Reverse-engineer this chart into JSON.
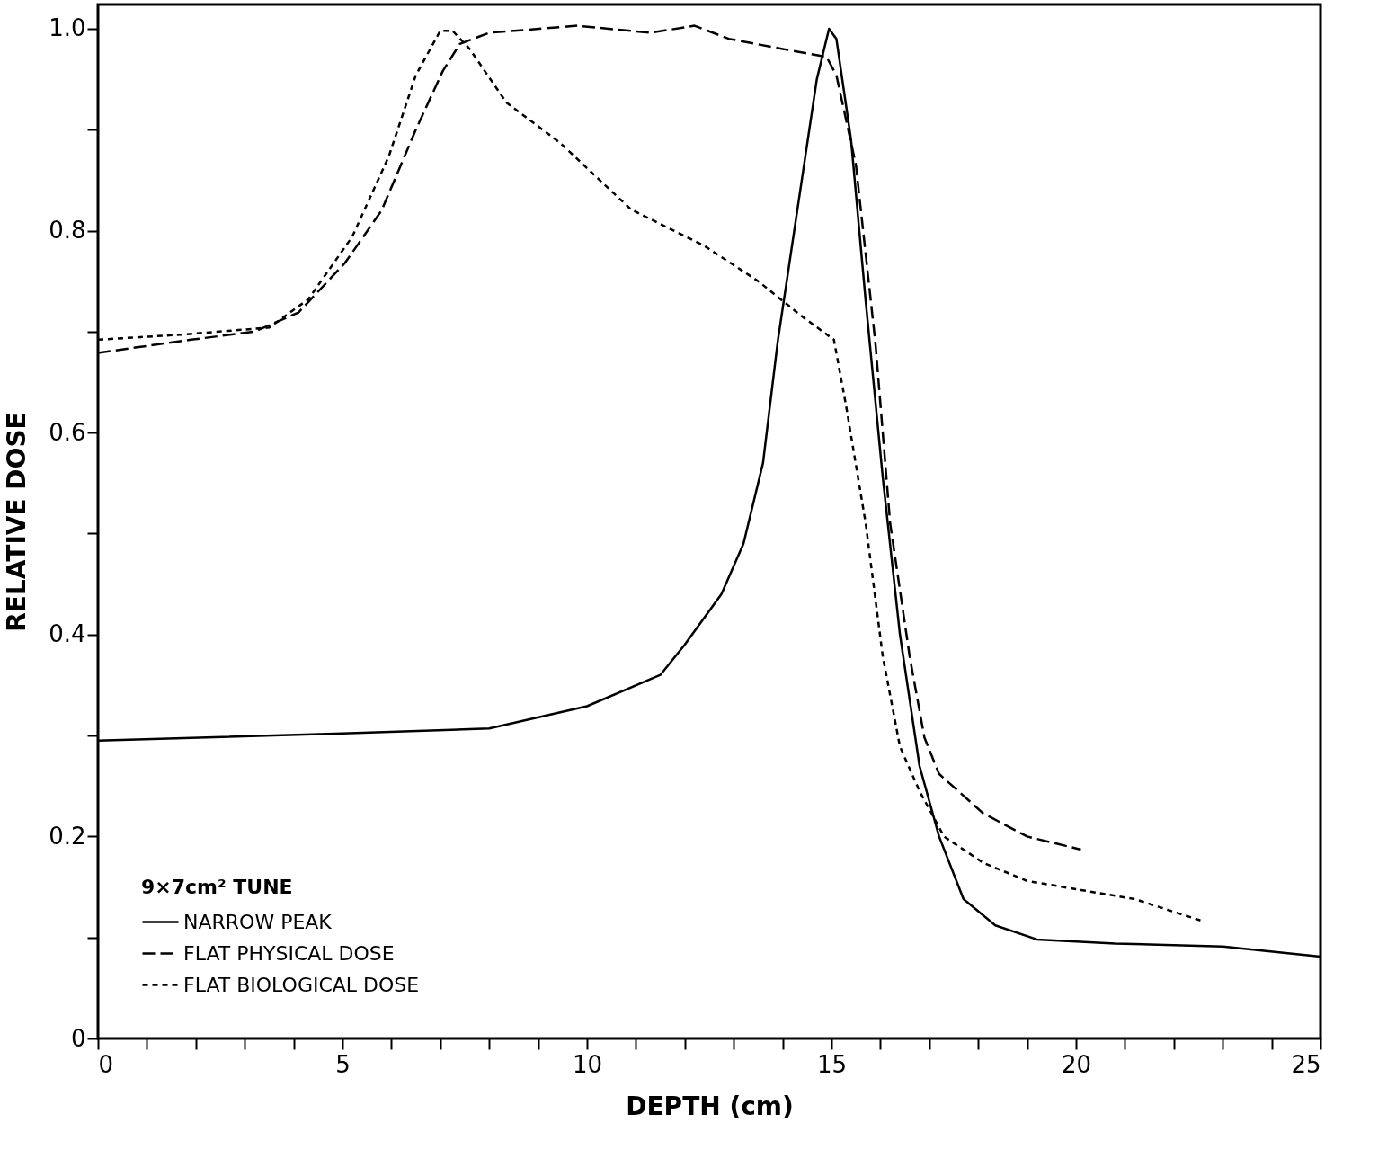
{
  "chart_data": {
    "type": "line",
    "xlabel": "DEPTH (cm)",
    "ylabel": "RELATIVE DOSE",
    "legend_title": "9×7cm² TUNE",
    "legend": "bottom left",
    "grid": false,
    "marker": "none",
    "xlim": [
      0,
      25
    ],
    "ylim": [
      0,
      1.024
    ],
    "xticks": [
      0,
      {
        "value": 1,
        "label": null
      },
      {
        "value": 2,
        "label": null
      },
      {
        "value": 3,
        "label": null
      },
      {
        "value": 4,
        "label": null
      },
      5,
      {
        "value": 6,
        "label": null
      },
      {
        "value": 7,
        "label": null
      },
      {
        "value": 8,
        "label": null
      },
      {
        "value": 9,
        "label": null
      },
      10,
      {
        "value": 11,
        "label": null
      },
      {
        "value": 12,
        "label": null
      },
      {
        "value": 13,
        "label": null
      },
      {
        "value": 14,
        "label": null
      },
      15,
      {
        "value": 16,
        "label": null
      },
      {
        "value": 17,
        "label": null
      },
      {
        "value": 18,
        "label": null
      },
      {
        "value": 19,
        "label": null
      },
      20,
      {
        "value": 21,
        "label": null
      },
      {
        "value": 22,
        "label": null
      },
      {
        "value": 23,
        "label": null
      },
      {
        "value": 24,
        "label": null
      },
      25
    ],
    "yticks": [
      0,
      {
        "value": 0.1,
        "label": null
      },
      0.2,
      {
        "value": 0.3,
        "label": null
      },
      0.4,
      {
        "value": 0.5,
        "label": null
      },
      0.6,
      {
        "value": 0.7,
        "label": null
      },
      0.8,
      {
        "value": 0.9,
        "label": null
      },
      {
        "value": 1,
        "label": "1.0"
      }
    ],
    "series": [
      {
        "name": "NARROW PEAK",
        "color": "#000000",
        "line_style": "solid",
        "x": [
          0,
          5,
          8,
          10,
          11.5,
          12,
          12.75,
          13.2,
          13.6,
          13.9,
          14.3,
          14.7,
          14.95,
          15.1,
          15.4,
          15.7,
          16.05,
          16.4,
          16.8,
          17.2,
          17.7,
          18.35,
          19.2,
          20.8,
          23,
          25
        ],
        "values": [
          0.295,
          0.302,
          0.307,
          0.329,
          0.36,
          0.39,
          0.44,
          0.49,
          0.57,
          0.69,
          0.82,
          0.95,
          1.0,
          0.99,
          0.89,
          0.73,
          0.555,
          0.4,
          0.27,
          0.2,
          0.138,
          0.112,
          0.098,
          0.094,
          0.091,
          0.081
        ]
      },
      {
        "name": "FLAT PHYSICAL DOSE",
        "color": "#000000",
        "line_style": "dashed",
        "x": [
          0,
          1.9,
          3.2,
          4.1,
          5.05,
          5.8,
          6.5,
          7.05,
          7.4,
          8,
          9.8,
          11.3,
          12.2,
          12.9,
          14,
          14.9,
          15.1,
          15.5,
          15.9,
          16.2,
          16.6,
          16.9,
          17.2,
          18.1,
          19,
          20.1
        ],
        "values": [
          0.679,
          0.692,
          0.7,
          0.719,
          0.768,
          0.82,
          0.9,
          0.958,
          0.985,
          0.996,
          1.003,
          0.996,
          1.003,
          0.99,
          0.98,
          0.972,
          0.954,
          0.865,
          0.688,
          0.51,
          0.378,
          0.298,
          0.262,
          0.223,
          0.2,
          0.187
        ]
      },
      {
        "name": "FLAT BIOLOGICAL DOSE",
        "color": "#000000",
        "line_style": "dotted",
        "x": [
          0,
          1.7,
          3.5,
          4.3,
          5.2,
          5.95,
          6.5,
          7.0,
          7.25,
          7.6,
          8.35,
          9.45,
          10.9,
          12.4,
          13.5,
          14.4,
          15.05,
          15.3,
          15.7,
          16.05,
          16.4,
          16.8,
          17.3,
          18.1,
          19,
          20.1,
          21.2,
          22.6
        ],
        "values": [
          0.692,
          0.697,
          0.704,
          0.732,
          0.794,
          0.874,
          0.954,
          0.998,
          0.998,
          0.98,
          0.927,
          0.887,
          0.821,
          0.785,
          0.75,
          0.715,
          0.692,
          0.626,
          0.51,
          0.378,
          0.289,
          0.245,
          0.2,
          0.174,
          0.156,
          0.147,
          0.138,
          0.116
        ]
      }
    ]
  }
}
